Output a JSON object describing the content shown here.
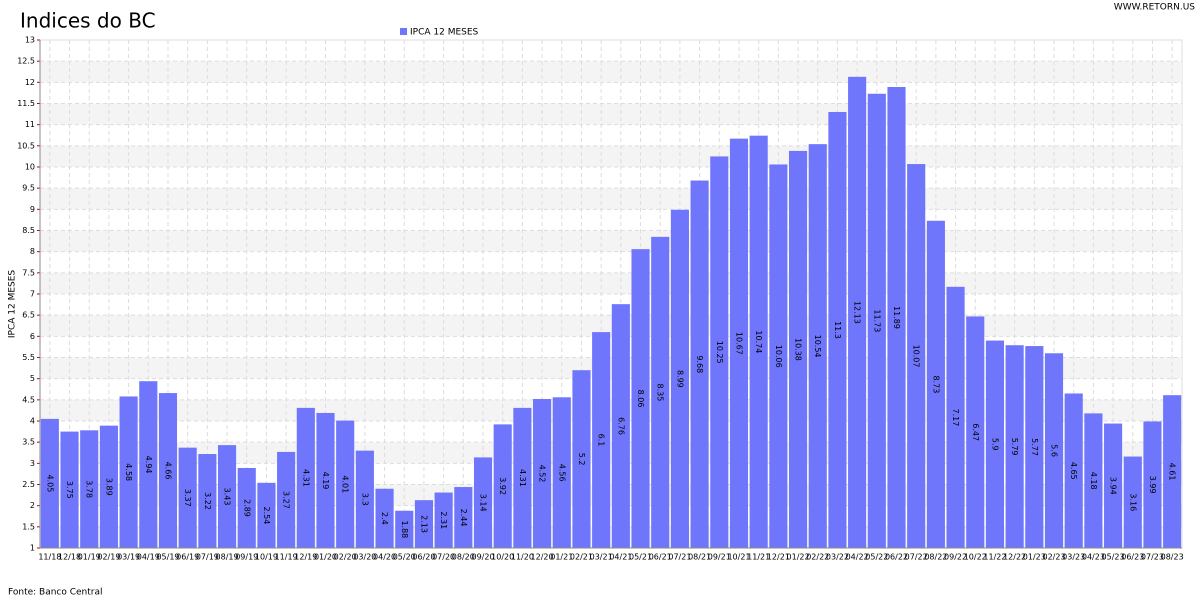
{
  "chart_data": {
    "type": "bar",
    "title": "Indices do BC",
    "watermark": "WWW.RETORN.US",
    "source": "Fonte: Banco Central",
    "y_label": "IPCA 12 MESES",
    "legend_position": "top",
    "grid": true,
    "categories": [
      "11/18",
      "12/18",
      "01/19",
      "02/19",
      "03/19",
      "04/19",
      "05/19",
      "06/19",
      "07/19",
      "08/19",
      "09/19",
      "10/19",
      "11/19",
      "12/19",
      "01/20",
      "02/20",
      "03/20",
      "04/20",
      "05/20",
      "06/20",
      "07/20",
      "08/20",
      "09/20",
      "10/20",
      "11/20",
      "12/20",
      "01/21",
      "02/21",
      "03/21",
      "04/21",
      "05/21",
      "06/21",
      "07/21",
      "08/21",
      "09/21",
      "10/21",
      "11/21",
      "12/21",
      "01/22",
      "02/22",
      "03/22",
      "04/22",
      "05/22",
      "06/22",
      "07/22",
      "08/22",
      "09/22",
      "10/22",
      "11/22",
      "12/22",
      "01/23",
      "02/23",
      "03/23",
      "04/23",
      "05/23",
      "06/23",
      "07/23",
      "08/23"
    ],
    "series": [
      {
        "name": "IPCA 12 MESES",
        "color": "#6f76fc",
        "values": [
          4.05,
          3.75,
          3.78,
          3.89,
          4.58,
          4.94,
          4.66,
          3.37,
          3.22,
          3.43,
          2.89,
          2.54,
          3.27,
          4.31,
          4.19,
          4.01,
          3.3,
          2.4,
          1.88,
          2.13,
          2.31,
          2.44,
          3.14,
          3.92,
          4.31,
          4.52,
          4.56,
          5.2,
          6.1,
          6.76,
          8.06,
          8.35,
          8.99,
          9.68,
          10.25,
          10.67,
          10.74,
          10.06,
          10.38,
          10.54,
          11.3,
          12.13,
          11.73,
          11.89,
          10.07,
          8.73,
          7.17,
          6.47,
          5.9,
          5.79,
          5.77,
          5.6,
          4.65,
          4.18,
          3.94,
          3.16,
          3.99,
          4.61
        ]
      }
    ],
    "ylim": [
      1,
      13
    ],
    "yticks": [
      1,
      1.5,
      2,
      2.5,
      3,
      3.5,
      4,
      4.5,
      5,
      5.5,
      6,
      6.5,
      7,
      7.5,
      8,
      8.5,
      9,
      9.5,
      10,
      10.5,
      11,
      11.5,
      12,
      12.5,
      13
    ]
  }
}
